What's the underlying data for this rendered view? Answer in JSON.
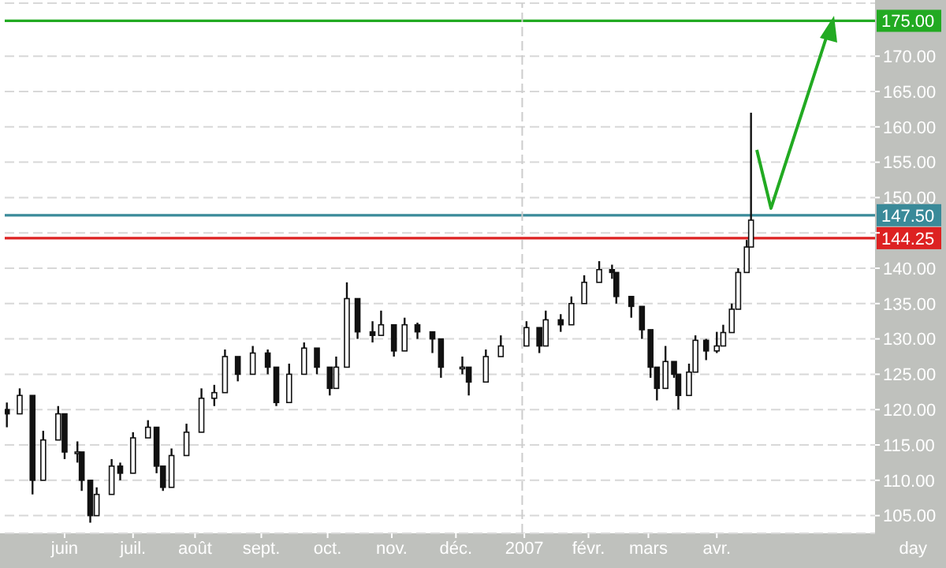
{
  "chart_data": {
    "type": "candlestick",
    "xlabel": "day",
    "xlim": [
      "2006-05-04",
      "2007-06-15"
    ],
    "ylim": [
      102.5,
      177.5
    ],
    "xticks": [
      {
        "value": "2006-06-01",
        "label": "juin"
      },
      {
        "value": "2006-07-03",
        "label": "juil."
      },
      {
        "value": "2006-08-01",
        "label": "août"
      },
      {
        "value": "2006-09-01",
        "label": "sept."
      },
      {
        "value": "2006-10-02",
        "label": "oct."
      },
      {
        "value": "2006-11-01",
        "label": "nov."
      },
      {
        "value": "2006-12-01",
        "label": "déc."
      },
      {
        "value": "2007-01-02",
        "label": "2007"
      },
      {
        "value": "2007-02-01",
        "label": "févr."
      },
      {
        "value": "2007-03-01",
        "label": "mars"
      },
      {
        "value": "2007-04-02",
        "label": "avr."
      }
    ],
    "yticks": [
      {
        "value": 105,
        "label": "105.00"
      },
      {
        "value": 110,
        "label": "110.00"
      },
      {
        "value": 115,
        "label": "115.00"
      },
      {
        "value": 120,
        "label": "120.00"
      },
      {
        "value": 125,
        "label": "125.00"
      },
      {
        "value": 130,
        "label": "130.00"
      },
      {
        "value": 135,
        "label": "135.00"
      },
      {
        "value": 140,
        "label": "140.00"
      },
      {
        "value": 145,
        "label": null
      },
      {
        "value": 150,
        "label": "150.00"
      },
      {
        "value": 155,
        "label": "155.00"
      },
      {
        "value": 160,
        "label": "160.00"
      },
      {
        "value": 165,
        "label": "165.00"
      },
      {
        "value": 170,
        "label": "170.00"
      }
    ],
    "grid": "y",
    "series": [
      {
        "color": "#111111",
        "x": [
          "2006-05-05",
          "2006-05-11",
          "2006-05-17",
          "2006-05-22",
          "2006-05-29",
          "2006-06-01",
          "2006-06-07",
          "2006-06-09",
          "2006-06-13",
          "2006-06-16",
          "2006-06-23",
          "2006-06-27",
          "2006-07-03",
          "2006-07-10",
          "2006-07-14",
          "2006-07-17",
          "2006-07-21",
          "2006-07-28",
          "2006-08-04",
          "2006-08-10",
          "2006-08-15",
          "2006-08-21",
          "2006-08-28",
          "2006-09-04",
          "2006-09-08",
          "2006-09-14",
          "2006-09-21",
          "2006-09-27",
          "2006-10-03",
          "2006-10-06",
          "2006-10-11",
          "2006-10-16",
          "2006-10-23",
          "2006-10-27",
          "2006-11-02",
          "2006-11-07",
          "2006-11-13",
          "2006-11-20",
          "2006-11-24",
          "2006-12-04",
          "2006-12-07",
          "2006-12-15",
          "2006-12-22",
          "2007-01-03",
          "2007-01-09",
          "2007-01-12",
          "2007-01-19",
          "2007-01-24",
          "2007-01-30",
          "2007-02-06",
          "2007-02-12",
          "2007-02-14",
          "2007-02-21",
          "2007-02-26",
          "2007-03-02",
          "2007-03-05",
          "2007-03-09",
          "2007-03-13",
          "2007-03-15",
          "2007-03-20",
          "2007-03-23",
          "2007-03-28",
          "2007-04-02",
          "2007-04-05",
          "2007-04-09",
          "2007-04-12",
          "2007-04-16",
          "2007-04-18"
        ],
        "ohlc": [
          [
            120,
            121,
            117.5,
            119.4
          ],
          [
            119.4,
            123,
            119.4,
            122
          ],
          [
            122,
            122,
            108,
            110
          ],
          [
            110,
            117,
            110,
            115.7
          ],
          [
            115.7,
            120.5,
            115.7,
            119.4
          ],
          [
            119.4,
            119.4,
            113,
            114
          ],
          [
            114,
            115.5,
            112.5,
            114
          ],
          [
            114,
            114,
            108.5,
            110
          ],
          [
            110,
            110,
            104,
            105
          ],
          [
            105,
            109,
            105,
            108
          ],
          [
            108,
            113,
            108,
            112
          ],
          [
            112,
            112.5,
            110,
            111
          ],
          [
            111,
            116.8,
            111,
            116
          ],
          [
            116,
            118.5,
            116,
            117.5
          ],
          [
            117.5,
            117.5,
            111,
            112
          ],
          [
            112,
            112,
            108.5,
            109
          ],
          [
            109,
            114.5,
            109,
            113.5
          ],
          [
            113.5,
            118,
            113.5,
            116.8
          ],
          [
            116.8,
            123,
            116.8,
            121.6
          ],
          [
            121.6,
            123.5,
            120.5,
            122.4
          ],
          [
            122.4,
            128.5,
            122.4,
            127.5
          ],
          [
            127.5,
            127.5,
            124,
            125
          ],
          [
            125,
            129,
            125,
            128
          ],
          [
            128,
            128.5,
            125,
            126
          ],
          [
            126,
            126,
            120.5,
            121
          ],
          [
            121,
            126.5,
            121,
            125
          ],
          [
            125,
            129.5,
            125,
            128.7
          ],
          [
            128.7,
            128.7,
            125,
            126
          ],
          [
            126,
            126,
            122,
            123
          ],
          [
            123,
            127.5,
            123,
            126
          ],
          [
            126,
            138,
            126,
            135.7
          ],
          [
            135.7,
            135.7,
            130,
            131
          ],
          [
            131,
            132.5,
            129.5,
            130.5
          ],
          [
            130.5,
            134,
            130.5,
            132
          ],
          [
            132,
            132,
            127.5,
            128.3
          ],
          [
            128.3,
            133,
            128.3,
            132
          ],
          [
            132,
            132.3,
            130,
            131
          ],
          [
            131,
            131,
            128,
            130
          ],
          [
            130,
            130,
            124.5,
            126
          ],
          [
            126,
            127.5,
            125,
            126
          ],
          [
            126,
            126,
            122,
            123.9
          ],
          [
            123.9,
            128.5,
            123.9,
            127.5
          ],
          [
            127.5,
            130.5,
            127.5,
            129
          ],
          [
            129,
            132.5,
            129,
            131.6
          ],
          [
            131.6,
            131.6,
            128,
            129
          ],
          [
            129,
            134,
            129,
            132.7
          ],
          [
            132.7,
            133.5,
            131,
            132
          ],
          [
            132,
            136,
            132,
            135
          ],
          [
            135,
            139,
            135,
            138
          ],
          [
            138,
            141,
            138,
            139.8
          ],
          [
            139.8,
            140.5,
            138.5,
            139.4
          ],
          [
            139.4,
            139.4,
            135,
            136
          ],
          [
            136,
            136,
            133,
            134.6
          ],
          [
            134.6,
            134.6,
            130,
            131.3
          ],
          [
            131.3,
            131.3,
            124.5,
            126
          ],
          [
            126,
            126,
            121.3,
            123
          ],
          [
            123,
            129,
            123,
            126.8
          ],
          [
            126.8,
            126.8,
            124.5,
            125
          ],
          [
            125,
            125,
            120,
            122
          ],
          [
            122,
            126.5,
            122,
            125.3
          ],
          [
            125.3,
            130.5,
            125.3,
            129.8
          ],
          [
            129.8,
            130,
            127,
            128.3
          ],
          [
            128.3,
            131,
            128,
            129
          ],
          [
            129,
            132,
            129,
            130.9
          ],
          [
            130.9,
            135,
            130.9,
            134.2
          ],
          [
            134.2,
            140,
            134.2,
            139.4
          ],
          [
            139.4,
            144,
            139.4,
            143
          ],
          [
            143,
            162,
            143,
            146.8
          ]
        ]
      }
    ],
    "ref_lines": [
      {
        "axis": "y",
        "value": 175,
        "label": "175.00",
        "color": "#22aa22"
      },
      {
        "axis": "y",
        "value": 147.5,
        "label": "147.50",
        "color": "#3a8a99"
      },
      {
        "axis": "y",
        "value": 144.25,
        "label": "144.25",
        "color": "#dd2222"
      },
      {
        "axis": "x",
        "value": "2007-01-01",
        "color": "#cccccc",
        "line_style": "dashed"
      }
    ]
  }
}
